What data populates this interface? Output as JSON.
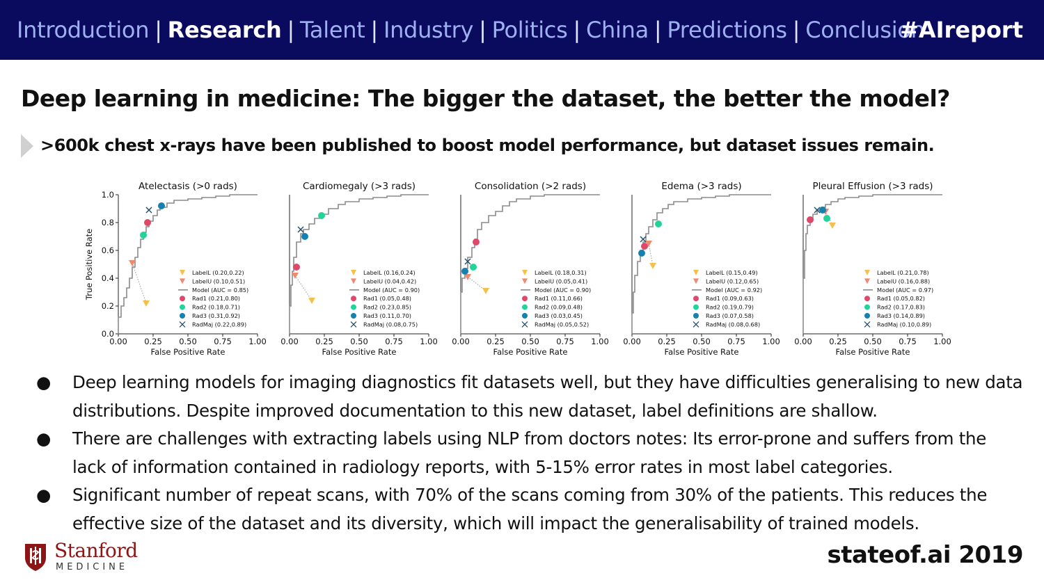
{
  "nav": {
    "items": [
      "Introduction",
      "Research",
      "Talent",
      "Industry",
      "Politics",
      "China",
      "Predictions",
      "Conclusion"
    ],
    "active": "Research",
    "hashtag": "#AIreport"
  },
  "title": "Deep learning in medicine: The bigger the dataset, the better the model?",
  "subtitle": ">600k chest x-rays have been published to boost model performance, but dataset issues remain.",
  "bullets": [
    "Deep learning models for imaging diagnostics fit datasets well, but they have difficulties generalising to new data distributions. Despite improved documentation to this new dataset, label definitions are shallow.",
    "There are challenges with extracting labels using NLP from doctors notes: Its error-prone and suffers from the lack of information contained in radiology reports, with 5-15% error rates in most label categories.",
    "Significant number of repeat scans, with 70% of the scans coming from 30% of the patients. This reduces the effective size of the dataset and its diversity, which will impact the generalisability of trained models."
  ],
  "bullet_marker": "●",
  "logo": {
    "name": "Stanford",
    "sub": "MEDICINE"
  },
  "footer": "stateof.ai 2019",
  "colors": {
    "nav_bg": "#0a0a5e",
    "LabelL": "#f5c04a",
    "LabelU": "#ee8a6e",
    "Model": "#8a8a8a",
    "Rad1": "#e0486a",
    "Rad2": "#22d39a",
    "Rad3": "#1680b0",
    "RadMaj": "#1a4a6a",
    "brand": "#8c1515"
  },
  "chart_data": [
    {
      "type": "line",
      "title": "Atelectasis (>0 rads)",
      "xlabel": "False Positive Rate",
      "ylabel": "True Positive Rate",
      "xlim": [
        0,
        1
      ],
      "ylim": [
        0,
        1
      ],
      "xticks": [
        "0.00",
        "0.25",
        "0.50",
        "0.75",
        "1.00"
      ],
      "yticks": [
        "0.0",
        "0.2",
        "0.4",
        "0.6",
        "0.8",
        "1.0"
      ],
      "legend_position": "bottom-right",
      "model_curve": {
        "name": "Model (AUC = 0.85)",
        "x": [
          0,
          0,
          0.02,
          0.04,
          0.06,
          0.08,
          0.1,
          0.12,
          0.14,
          0.16,
          0.18,
          0.2,
          0.22,
          0.25,
          0.28,
          0.3,
          0.35,
          0.4,
          0.5,
          0.6,
          0.7,
          0.8,
          0.9,
          1.0
        ],
        "y": [
          0,
          0.12,
          0.2,
          0.26,
          0.33,
          0.4,
          0.48,
          0.55,
          0.62,
          0.68,
          0.73,
          0.77,
          0.81,
          0.85,
          0.89,
          0.91,
          0.94,
          0.96,
          0.97,
          0.98,
          0.99,
          1.0,
          1.0,
          1.0
        ]
      },
      "points": [
        {
          "name": "LabelL",
          "label": "LabelL (0.20,0.22)",
          "x": 0.2,
          "y": 0.22,
          "marker": "triangle"
        },
        {
          "name": "LabelU",
          "label": "LabelU (0.10,0.51)",
          "x": 0.1,
          "y": 0.51,
          "marker": "triangle"
        },
        {
          "name": "Rad1",
          "label": "Rad1  (0.21,0.80)",
          "x": 0.21,
          "y": 0.8,
          "marker": "circle"
        },
        {
          "name": "Rad2",
          "label": "Rad2  (0.18,0.71)",
          "x": 0.18,
          "y": 0.71,
          "marker": "circle"
        },
        {
          "name": "Rad3",
          "label": "Rad3  (0.31,0.92)",
          "x": 0.31,
          "y": 0.92,
          "marker": "circle"
        },
        {
          "name": "RadMaj",
          "label": "RadMaj  (0.22,0.89)",
          "x": 0.22,
          "y": 0.89,
          "marker": "x"
        }
      ]
    },
    {
      "type": "line",
      "title": "Cardiomegaly (>3 rads)",
      "xlabel": "False Positive Rate",
      "ylabel": "",
      "xlim": [
        0,
        1
      ],
      "ylim": [
        0,
        1
      ],
      "xticks": [
        "0.00",
        "0.25",
        "0.50",
        "0.75",
        "1.00"
      ],
      "yticks": [],
      "legend_position": "bottom-right",
      "model_curve": {
        "name": "Model (AUC = 0.90)",
        "x": [
          0,
          0,
          0.01,
          0.02,
          0.03,
          0.05,
          0.08,
          0.1,
          0.14,
          0.18,
          0.22,
          0.28,
          0.35,
          0.4,
          0.5,
          0.6,
          0.7,
          0.8,
          0.9,
          1.0
        ],
        "y": [
          0,
          0.2,
          0.35,
          0.45,
          0.55,
          0.66,
          0.72,
          0.75,
          0.79,
          0.83,
          0.86,
          0.9,
          0.93,
          0.95,
          0.97,
          0.98,
          0.99,
          1.0,
          1.0,
          1.0
        ]
      },
      "points": [
        {
          "name": "LabelL",
          "label": "LabelL (0.16,0.24)",
          "x": 0.16,
          "y": 0.24,
          "marker": "triangle"
        },
        {
          "name": "LabelU",
          "label": "LabelU (0.04,0.42)",
          "x": 0.04,
          "y": 0.42,
          "marker": "triangle"
        },
        {
          "name": "Rad1",
          "label": "Rad1  (0.05,0.48)",
          "x": 0.05,
          "y": 0.48,
          "marker": "circle"
        },
        {
          "name": "Rad2",
          "label": "Rad2  (0.23,0.85)",
          "x": 0.23,
          "y": 0.85,
          "marker": "circle"
        },
        {
          "name": "Rad3",
          "label": "Rad3  (0.11,0.70)",
          "x": 0.11,
          "y": 0.7,
          "marker": "circle"
        },
        {
          "name": "RadMaj",
          "label": "RadMaj  (0.08,0.75)",
          "x": 0.08,
          "y": 0.75,
          "marker": "x"
        }
      ]
    },
    {
      "type": "line",
      "title": "Consolidation (>2 rads)",
      "xlabel": "False Positive Rate",
      "ylabel": "",
      "xlim": [
        0,
        1
      ],
      "ylim": [
        0,
        1
      ],
      "xticks": [
        "0.00",
        "0.25",
        "0.50",
        "0.75",
        "1.00"
      ],
      "yticks": [],
      "legend_position": "bottom-right",
      "model_curve": {
        "name": "Model (AUC = 0.90)",
        "x": [
          0,
          0,
          0.01,
          0.03,
          0.05,
          0.08,
          0.1,
          0.12,
          0.15,
          0.2,
          0.25,
          0.3,
          0.35,
          0.4,
          0.5,
          0.6,
          0.7,
          0.8,
          0.9,
          1.0
        ],
        "y": [
          0,
          0.3,
          0.4,
          0.47,
          0.55,
          0.62,
          0.68,
          0.75,
          0.8,
          0.85,
          0.88,
          0.92,
          0.95,
          0.97,
          0.99,
          1.0,
          1.0,
          1.0,
          1.0,
          1.0
        ]
      },
      "points": [
        {
          "name": "LabelL",
          "label": "LabelL (0.18,0.31)",
          "x": 0.18,
          "y": 0.31,
          "marker": "triangle"
        },
        {
          "name": "LabelU",
          "label": "LabelU (0.05,0.41)",
          "x": 0.05,
          "y": 0.41,
          "marker": "triangle"
        },
        {
          "name": "Rad1",
          "label": "Rad1  (0.11,0.66)",
          "x": 0.11,
          "y": 0.66,
          "marker": "circle"
        },
        {
          "name": "Rad2",
          "label": "Rad2  (0.09,0.48)",
          "x": 0.09,
          "y": 0.48,
          "marker": "circle"
        },
        {
          "name": "Rad3",
          "label": "Rad3  (0.03,0.45)",
          "x": 0.03,
          "y": 0.45,
          "marker": "circle"
        },
        {
          "name": "RadMaj",
          "label": "RadMaj  (0.05,0.52)",
          "x": 0.05,
          "y": 0.52,
          "marker": "x"
        }
      ]
    },
    {
      "type": "line",
      "title": "Edema (>3 rads)",
      "xlabel": "False Positive Rate",
      "ylabel": "",
      "xlim": [
        0,
        1
      ],
      "ylim": [
        0,
        1
      ],
      "xticks": [
        "0.00",
        "0.25",
        "0.50",
        "0.75",
        "1.00"
      ],
      "yticks": [],
      "legend_position": "bottom-right",
      "model_curve": {
        "name": "Model (AUC = 0.92)",
        "x": [
          0,
          0,
          0.01,
          0.02,
          0.04,
          0.06,
          0.08,
          0.1,
          0.12,
          0.15,
          0.18,
          0.22,
          0.26,
          0.3,
          0.4,
          0.5,
          0.6,
          0.7,
          0.8,
          0.9,
          1.0
        ],
        "y": [
          0,
          0.15,
          0.3,
          0.42,
          0.52,
          0.6,
          0.66,
          0.72,
          0.77,
          0.82,
          0.87,
          0.9,
          0.93,
          0.95,
          0.97,
          0.98,
          0.99,
          1.0,
          1.0,
          1.0,
          1.0
        ]
      },
      "points": [
        {
          "name": "LabelL",
          "label": "LabelL (0.15,0.49)",
          "x": 0.15,
          "y": 0.49,
          "marker": "triangle"
        },
        {
          "name": "LabelU",
          "label": "LabelU (0.12,0.65)",
          "x": 0.12,
          "y": 0.65,
          "marker": "triangle"
        },
        {
          "name": "Rad1",
          "label": "Rad1  (0.09,0.63)",
          "x": 0.09,
          "y": 0.63,
          "marker": "circle"
        },
        {
          "name": "Rad2",
          "label": "Rad2  (0.19,0.79)",
          "x": 0.19,
          "y": 0.79,
          "marker": "circle"
        },
        {
          "name": "Rad3",
          "label": "Rad3  (0.07,0.58)",
          "x": 0.07,
          "y": 0.58,
          "marker": "circle"
        },
        {
          "name": "RadMaj",
          "label": "RadMaj  (0.08,0.68)",
          "x": 0.08,
          "y": 0.68,
          "marker": "x"
        }
      ]
    },
    {
      "type": "line",
      "title": "Pleural Effusion (>3 rads)",
      "xlabel": "False Positive Rate",
      "ylabel": "",
      "xlim": [
        0,
        1
      ],
      "ylim": [
        0,
        1
      ],
      "xticks": [
        "0.00",
        "0.25",
        "0.50",
        "0.75",
        "1.00"
      ],
      "yticks": [],
      "legend_position": "bottom-right",
      "model_curve": {
        "name": "Model (AUC = 0.97)",
        "x": [
          0,
          0,
          0.01,
          0.02,
          0.03,
          0.05,
          0.07,
          0.1,
          0.13,
          0.16,
          0.2,
          0.25,
          0.3,
          0.4,
          0.5,
          0.6,
          0.7,
          0.8,
          0.9,
          1.0
        ],
        "y": [
          0,
          0.4,
          0.6,
          0.72,
          0.78,
          0.82,
          0.86,
          0.89,
          0.91,
          0.93,
          0.95,
          0.97,
          0.98,
          0.99,
          1.0,
          1.0,
          1.0,
          1.0,
          1.0,
          1.0
        ]
      },
      "points": [
        {
          "name": "LabelL",
          "label": "LabelL (0.21,0.78)",
          "x": 0.21,
          "y": 0.78,
          "marker": "triangle"
        },
        {
          "name": "LabelU",
          "label": "LabelU (0.16,0.88)",
          "x": 0.16,
          "y": 0.88,
          "marker": "triangle"
        },
        {
          "name": "Rad1",
          "label": "Rad1  (0.05,0.82)",
          "x": 0.05,
          "y": 0.82,
          "marker": "circle"
        },
        {
          "name": "Rad2",
          "label": "Rad2  (0.17,0.83)",
          "x": 0.17,
          "y": 0.83,
          "marker": "circle"
        },
        {
          "name": "Rad3",
          "label": "Rad3  (0.14,0.89)",
          "x": 0.14,
          "y": 0.89,
          "marker": "circle"
        },
        {
          "name": "RadMaj",
          "label": "RadMaj  (0.10,0.89)",
          "x": 0.1,
          "y": 0.89,
          "marker": "x"
        }
      ]
    }
  ]
}
